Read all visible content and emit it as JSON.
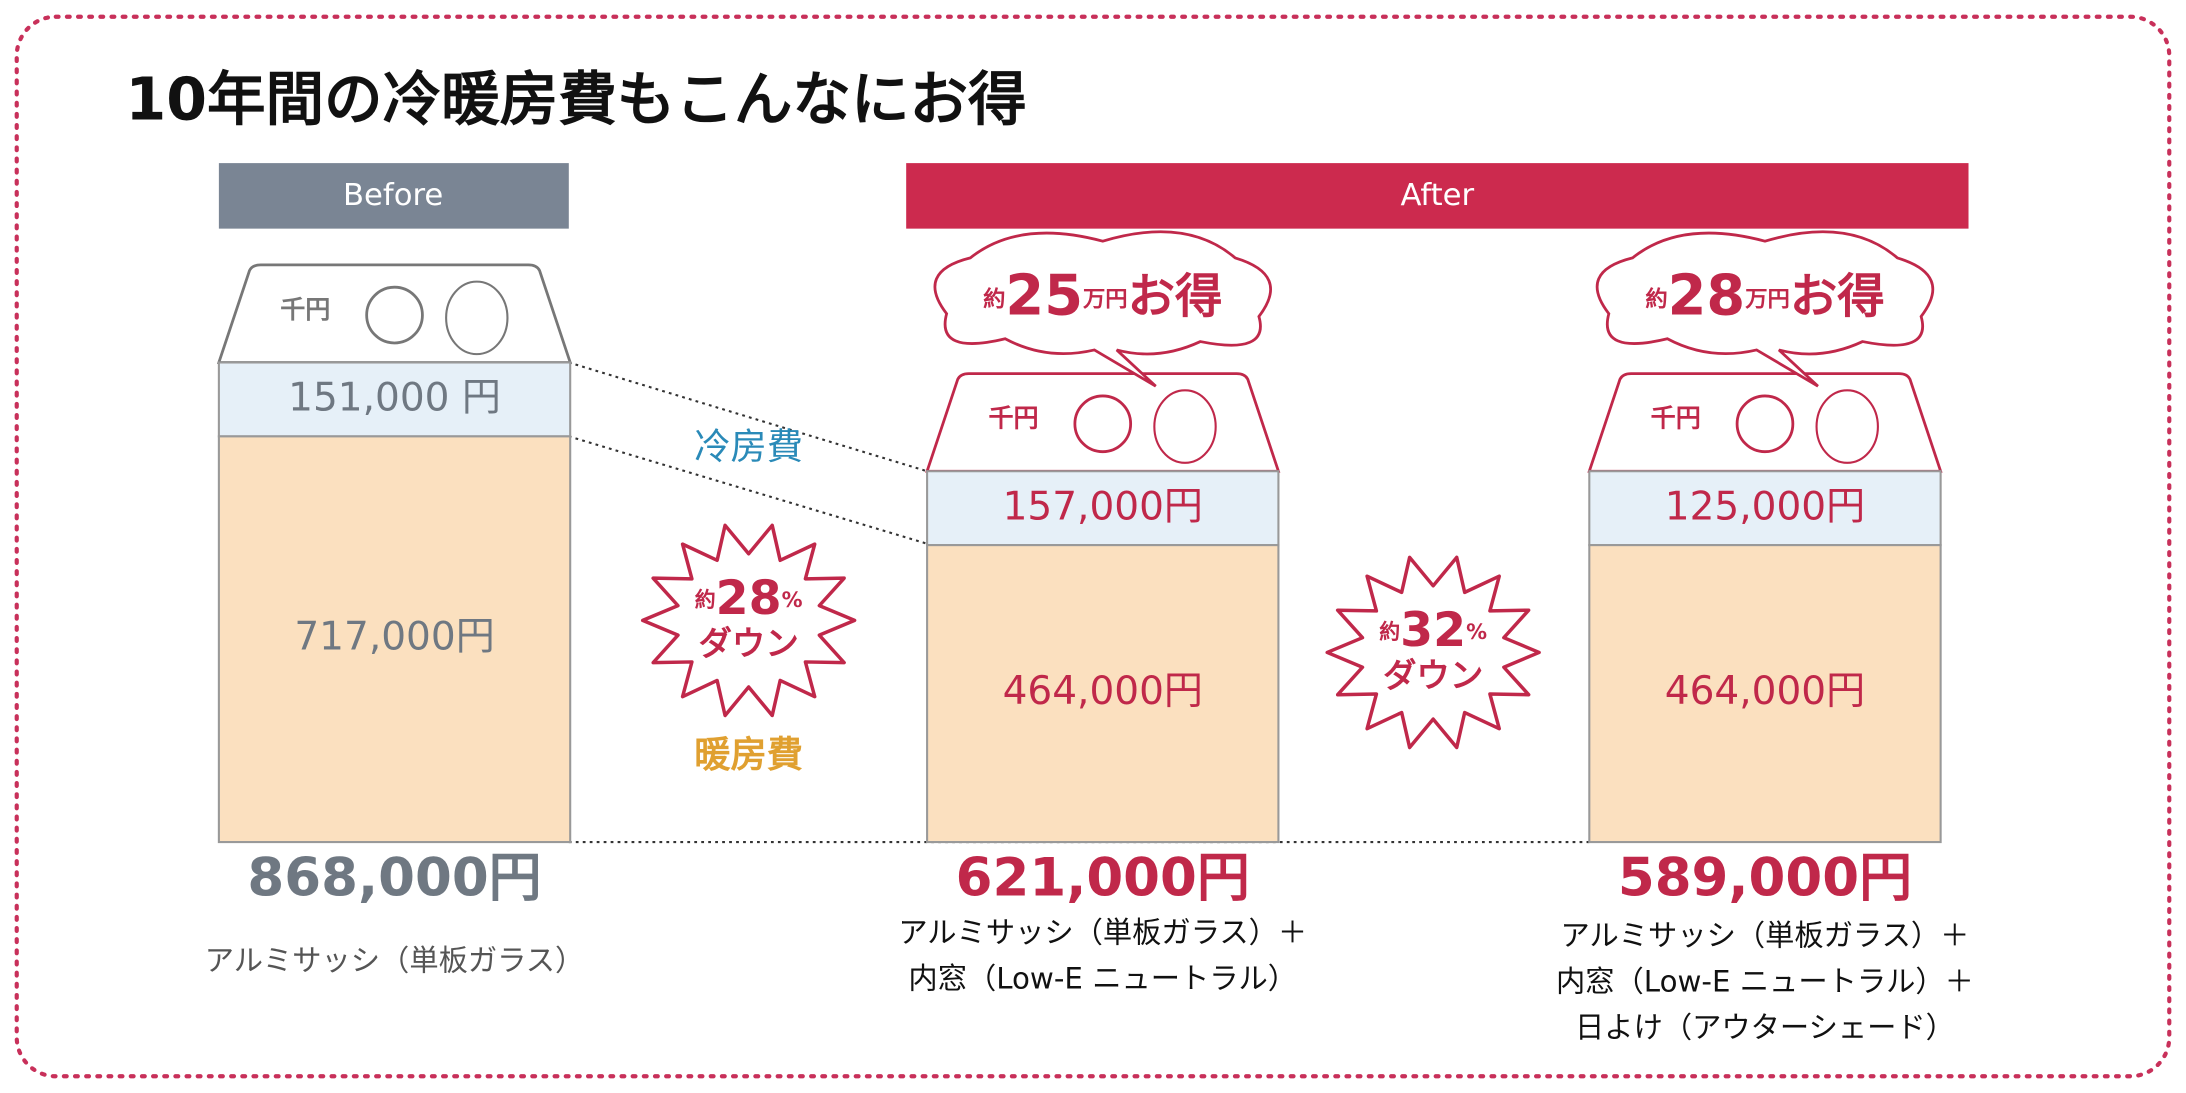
{
  "title": "10年間の冷暖房費もこんなにお得",
  "bill_text": "千円",
  "labels": {
    "cooling": "冷房費",
    "heating": "暖房費"
  },
  "columns": [
    {
      "header": "Before",
      "cooling": "151,000 円",
      "heating": "717,000円",
      "total": "868,000円",
      "description": [
        "アルミサッシ（単板ガラス）"
      ]
    },
    {
      "header": "After",
      "cooling": "157,000円",
      "heating": "464,000円",
      "total": "621,000円",
      "description": [
        "アルミサッシ（単板ガラス）＋",
        "内窓（Low-E ニュートラル）"
      ],
      "savings": {
        "prefix": "約",
        "amount": "25",
        "unit": "万円",
        "suffix": "お得"
      }
    },
    {
      "cooling": "125,000円",
      "heating": "464,000円",
      "total": "589,000円",
      "description": [
        "アルミサッシ（単板ガラス）＋",
        "内窓（Low-E ニュートラル）＋",
        "日よけ（アウターシェード）"
      ],
      "savings": {
        "prefix": "約",
        "amount": "28",
        "unit": "万円",
        "suffix": "お得"
      }
    }
  ],
  "reductions": [
    {
      "prefix": "約",
      "amount": "28",
      "unit": "%",
      "text": "ダウン"
    },
    {
      "prefix": "約",
      "amount": "32",
      "unit": "%",
      "text": "ダウン"
    }
  ]
}
